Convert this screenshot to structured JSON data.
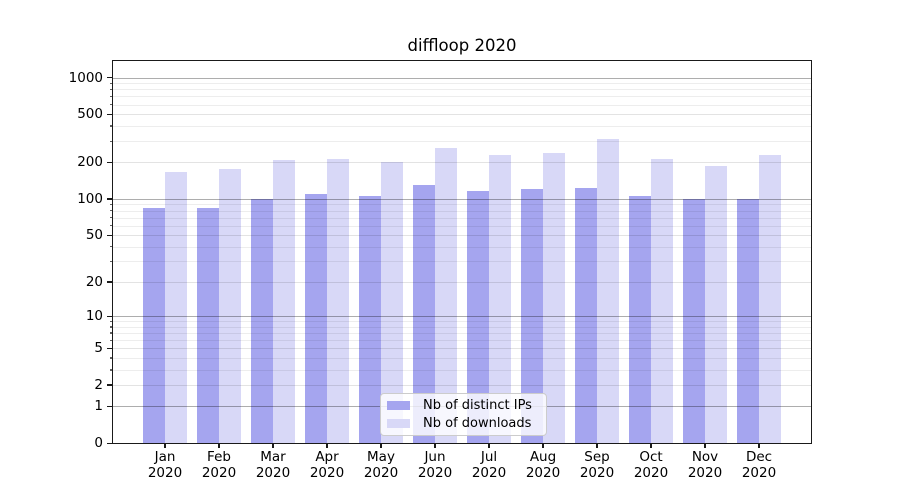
{
  "title": "diffloop 2020",
  "chart_data": {
    "type": "bar",
    "title": "diffloop 2020",
    "scale": "log1p",
    "categories": [
      "Jan 2020",
      "Feb 2020",
      "Mar 2020",
      "Apr 2020",
      "May 2020",
      "Jun 2020",
      "Jul 2020",
      "Aug 2020",
      "Sep 2020",
      "Oct 2020",
      "Nov 2020",
      "Dec 2020"
    ],
    "series": [
      {
        "name": "Nb of distinct IPs",
        "color": "#a5a5ef",
        "values": [
          84,
          84,
          100,
          110,
          105,
          130,
          117,
          121,
          123,
          106,
          99,
          100
        ]
      },
      {
        "name": "Nb of downloads",
        "color": "#d8d8f7",
        "values": [
          168,
          177,
          210,
          212,
          201,
          263,
          230,
          239,
          312,
          214,
          186,
          230
        ]
      }
    ],
    "y_ticks": [
      0,
      1,
      2,
      5,
      10,
      20,
      50,
      100,
      200,
      500,
      1000
    ],
    "y_minor_gridlines": [
      3,
      4,
      6,
      7,
      8,
      9,
      30,
      40,
      60,
      70,
      80,
      90,
      300,
      400,
      600,
      700,
      800,
      900
    ],
    "y_pow10_gridlines": [
      1,
      10,
      100,
      1000
    ],
    "ylim": [
      0,
      1350
    ],
    "xlabel": "",
    "ylabel": "",
    "grid": "on",
    "gridlines_above_bars": true,
    "legend_position": "bottom-center"
  },
  "colors": {
    "distinct_ips": "#a5a5ef",
    "downloads": "#d8d8f7",
    "spine": "#1a1a1a",
    "legend_border": "#cccccc"
  }
}
